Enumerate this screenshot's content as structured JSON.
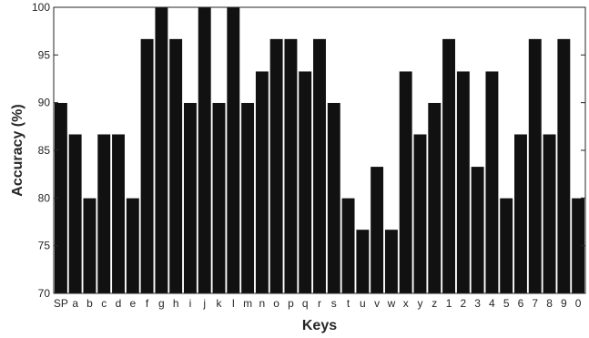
{
  "chart_data": {
    "type": "bar",
    "title": "",
    "xlabel": "Keys",
    "ylabel": "Accuracy (%)",
    "ylim": [
      70,
      100
    ],
    "yticks": [
      70,
      75,
      80,
      85,
      90,
      95,
      100
    ],
    "grid": false,
    "bar_color": "#111111",
    "categories": [
      "SP",
      "a",
      "b",
      "c",
      "d",
      "e",
      "f",
      "g",
      "h",
      "i",
      "j",
      "k",
      "l",
      "m",
      "n",
      "o",
      "p",
      "q",
      "r",
      "s",
      "t",
      "u",
      "v",
      "w",
      "x",
      "y",
      "z",
      "1",
      "2",
      "3",
      "4",
      "5",
      "6",
      "7",
      "8",
      "9",
      "0"
    ],
    "values": [
      90.0,
      86.7,
      80.0,
      86.7,
      86.7,
      80.0,
      96.7,
      100.0,
      96.7,
      90.0,
      100.0,
      90.0,
      100.0,
      90.0,
      93.3,
      96.7,
      96.7,
      93.3,
      96.7,
      90.0,
      80.0,
      76.7,
      83.3,
      76.7,
      93.3,
      86.7,
      90.0,
      96.7,
      93.3,
      83.3,
      93.3,
      80.0,
      86.7,
      96.7,
      86.7,
      96.7,
      80.0
    ]
  }
}
